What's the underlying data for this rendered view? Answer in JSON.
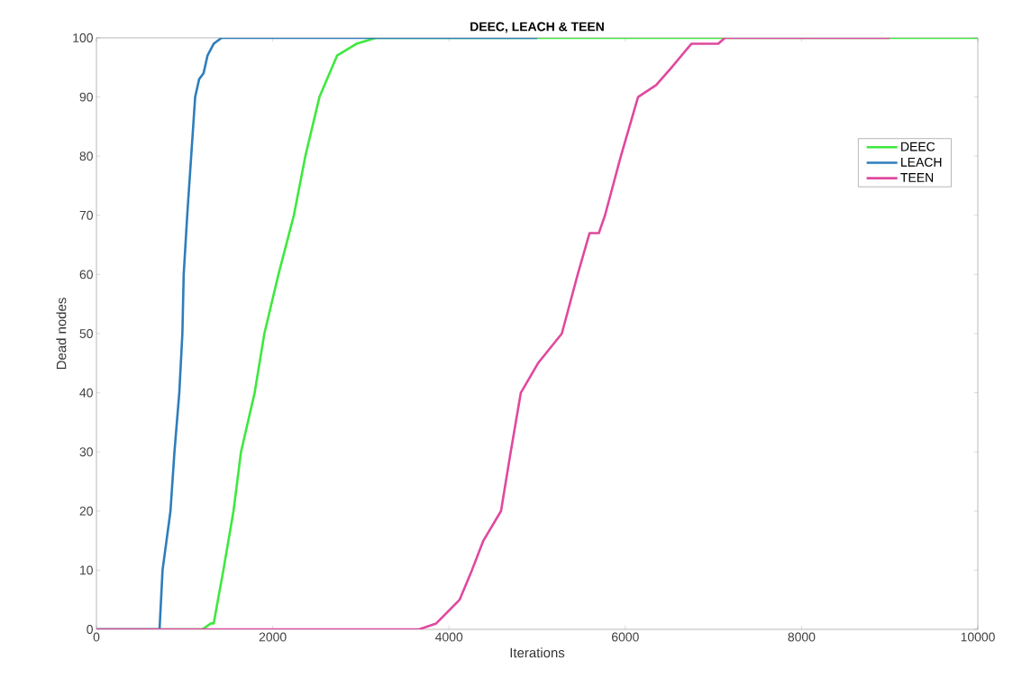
{
  "chart_data": {
    "type": "line",
    "title": "DEEC, LEACH & TEEN",
    "xlabel": "Iterations",
    "ylabel": "Dead nodes",
    "xlim": [
      0,
      10000
    ],
    "ylim": [
      0,
      100
    ],
    "xticks": [
      0,
      2000,
      4000,
      6000,
      8000,
      10000
    ],
    "yticks": [
      0,
      10,
      20,
      30,
      40,
      50,
      60,
      70,
      80,
      90,
      100
    ],
    "grid": false,
    "legend": "top right",
    "line_style": "solid",
    "marker": "none",
    "series": [
      {
        "name": "DEEC",
        "color": "#3ee83e",
        "x": [
          0,
          1200,
          1300,
          1330,
          1440,
          1555,
          1640,
          1795,
          1905,
          2065,
          2240,
          2370,
          2530,
          2730,
          2950,
          3170,
          10000
        ],
        "values": [
          0,
          0,
          1,
          1,
          10,
          20,
          30,
          40,
          50,
          60,
          70,
          80,
          90,
          97,
          99,
          100,
          100
        ]
      },
      {
        "name": "LEACH",
        "color": "#2e7ebc",
        "x": [
          0,
          716,
          750,
          840,
          885,
          940,
          975,
          990,
          1030,
          1075,
          1120,
          1165,
          1215,
          1260,
          1330,
          1420,
          5000
        ],
        "values": [
          0,
          0,
          10,
          20,
          30,
          40,
          50,
          60,
          70,
          80,
          90,
          93,
          94,
          97,
          99,
          100,
          100
        ]
      },
      {
        "name": "TEEN",
        "color": "#e0489f",
        "x": [
          0,
          3660,
          3855,
          4120,
          4260,
          4390,
          4590,
          4700,
          4815,
          5010,
          5280,
          5460,
          5595,
          5700,
          5770,
          5950,
          6145,
          6350,
          6525,
          6750,
          7055,
          7130,
          9000
        ],
        "values": [
          0,
          0,
          1,
          5,
          10,
          15,
          20,
          30,
          40,
          45,
          50,
          60,
          67,
          67,
          70,
          80,
          90,
          92,
          95,
          99,
          99,
          100,
          100
        ]
      }
    ]
  }
}
